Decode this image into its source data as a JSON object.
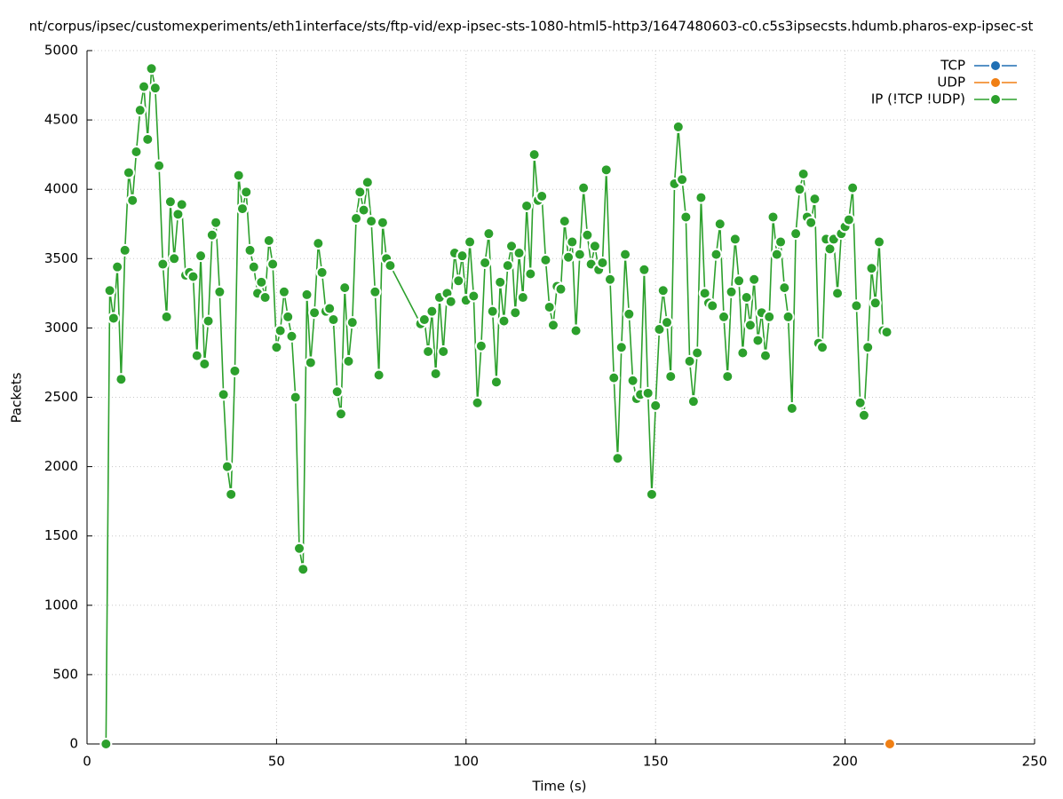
{
  "chart_data": {
    "type": "line",
    "title": "nt/corpus/ipsec/customexperiments/eth1interface/sts/ftp-vid/exp-ipsec-sts-1080-html5-http3/1647480603-c0.c5s3ipsecsts.hdumb.pharos-exp-ipsec-st",
    "x_label": "Time (s)",
    "y_label": "Packets",
    "xlim": [
      0,
      250
    ],
    "xticks": [
      0,
      50,
      100,
      150,
      200,
      250
    ],
    "ylim": [
      0,
      5000
    ],
    "yticks": [
      0,
      500,
      1000,
      1500,
      2000,
      2500,
      3000,
      3500,
      4000,
      4500,
      5000
    ],
    "grid": true,
    "legend": "upper right",
    "series": [
      {
        "name": "TCP",
        "color": "#1f6fb4",
        "x": [],
        "values": []
      },
      {
        "name": "UDP",
        "color": "#f07f14",
        "x": [
          211.8
        ],
        "values": [
          0
        ]
      },
      {
        "name": "IP (!TCP  !UDP)",
        "color": "#2ca02c",
        "x": [
          5,
          6,
          7,
          8,
          9,
          10,
          11,
          12,
          13,
          14,
          15,
          16,
          17,
          18,
          19,
          20,
          21,
          22,
          23,
          24,
          25,
          26,
          27,
          28,
          29,
          30,
          31,
          32,
          33,
          34,
          35,
          36,
          37,
          38,
          39,
          40,
          41,
          42,
          43,
          44,
          45,
          46,
          47,
          48,
          49,
          50,
          51,
          52,
          53,
          54,
          55,
          56,
          57,
          58,
          59,
          60,
          61,
          62,
          63,
          64,
          65,
          66,
          67,
          68,
          69,
          70,
          71,
          72,
          73,
          74,
          75,
          76,
          77,
          78,
          79,
          80,
          88,
          89,
          90,
          91,
          92,
          93,
          94,
          95,
          96,
          97,
          98,
          99,
          100,
          101,
          102,
          103,
          104,
          105,
          106,
          107,
          108,
          109,
          110,
          111,
          112,
          113,
          114,
          115,
          116,
          117,
          118,
          119,
          120,
          121,
          122,
          123,
          124,
          125,
          126,
          127,
          128,
          129,
          130,
          131,
          132,
          133,
          134,
          135,
          136,
          137,
          138,
          139,
          140,
          141,
          142,
          143,
          144,
          145,
          146,
          147,
          148,
          149,
          150,
          151,
          152,
          153,
          154,
          155,
          156,
          157,
          158,
          159,
          160,
          161,
          162,
          163,
          164,
          165,
          166,
          167,
          168,
          169,
          170,
          171,
          172,
          173,
          174,
          175,
          176,
          177,
          178,
          179,
          180,
          181,
          182,
          183,
          184,
          185,
          186,
          187,
          188,
          189,
          190,
          191,
          192,
          193,
          194,
          195,
          196,
          197,
          198,
          199,
          200,
          201,
          202,
          203,
          204,
          205,
          206,
          207,
          208,
          209,
          210,
          211
        ],
        "values": [
          0,
          3270,
          3070,
          3440,
          2630,
          3560,
          4120,
          3920,
          4270,
          4570,
          4740,
          4360,
          4870,
          4730,
          4170,
          3460,
          3080,
          3910,
          3500,
          3820,
          3890,
          3380,
          3400,
          3370,
          2800,
          3520,
          2740,
          3050,
          3670,
          3760,
          3260,
          2520,
          2000,
          1800,
          2690,
          4100,
          3860,
          3980,
          3560,
          3440,
          3250,
          3330,
          3220,
          3630,
          3460,
          2860,
          2980,
          3260,
          3080,
          2940,
          2500,
          1410,
          1260,
          3240,
          2750,
          3110,
          3610,
          3400,
          3120,
          3140,
          3060,
          2540,
          2380,
          3290,
          2760,
          3040,
          3790,
          3980,
          3850,
          4050,
          3770,
          3260,
          2660,
          3760,
          3500,
          3450,
          3030,
          3060,
          2830,
          3120,
          2670,
          3220,
          2830,
          3250,
          3190,
          3540,
          3340,
          3520,
          3200,
          3620,
          3230,
          2460,
          2870,
          3470,
          3680,
          3120,
          2610,
          3330,
          3050,
          3450,
          3590,
          3110,
          3540,
          3220,
          3880,
          3390,
          4250,
          3920,
          3950,
          3490,
          3150,
          3020,
          3300,
          3280,
          3770,
          3510,
          3620,
          2980,
          3530,
          4010,
          3670,
          3460,
          3590,
          3420,
          3470,
          4140,
          3350,
          2640,
          2060,
          2860,
          3530,
          3100,
          2620,
          2490,
          2520,
          3420,
          2530,
          1800,
          2440,
          2990,
          3270,
          3040,
          2650,
          4040,
          4450,
          4070,
          3800,
          2760,
          2470,
          2820,
          3940,
          3250,
          3180,
          3160,
          3530,
          3750,
          3080,
          2650,
          3260,
          3640,
          3340,
          2820,
          3220,
          3020,
          3350,
          2910,
          3110,
          2800,
          3080,
          3800,
          3530,
          3620,
          3290,
          3080,
          2420,
          3680,
          4000,
          4110,
          3800,
          3760,
          3930,
          2890,
          2860,
          3640,
          3570,
          3640,
          3250,
          3680,
          3730,
          3780,
          4010,
          3160,
          2460,
          2370,
          2860,
          3430,
          3180,
          3620,
          2980,
          2970
        ]
      }
    ]
  }
}
